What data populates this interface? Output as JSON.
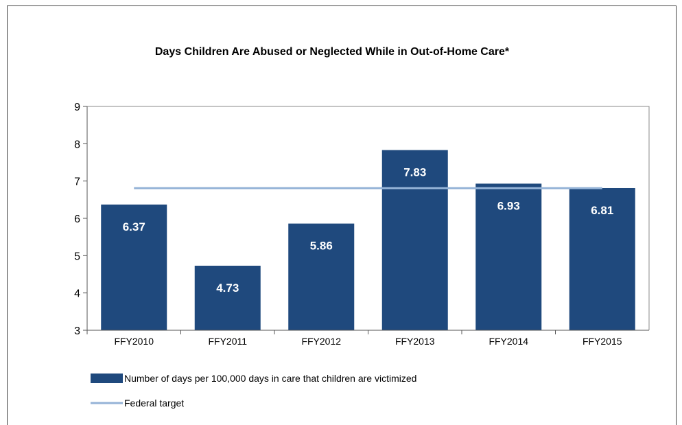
{
  "chart_data": {
    "type": "bar",
    "title": "Days Children Are Abused or Neglected While in Out-of-Home Care*",
    "categories": [
      "FFY2010",
      "FFY2011",
      "FFY2012",
      "FFY2013",
      "FFY2014",
      "FFY2015"
    ],
    "series": [
      {
        "name": "Number of days per 100,000 days in care that children are victimized",
        "type": "bar",
        "values": [
          6.37,
          4.73,
          5.86,
          7.83,
          6.93,
          6.81
        ],
        "data_labels": [
          "6.37",
          "4.73",
          "5.86",
          "7.83",
          "6.93",
          "6.81"
        ],
        "color": "#1F497D"
      },
      {
        "name": "Federal target",
        "type": "line",
        "values": [
          6.81,
          6.81,
          6.81,
          6.81,
          6.81,
          6.81
        ],
        "color": "#95B3D7"
      }
    ],
    "ylim": [
      3,
      9
    ],
    "yticks": [
      "3",
      "4",
      "5",
      "6",
      "7",
      "8",
      "9"
    ],
    "grid": false,
    "legend_position": "bottom-left"
  }
}
